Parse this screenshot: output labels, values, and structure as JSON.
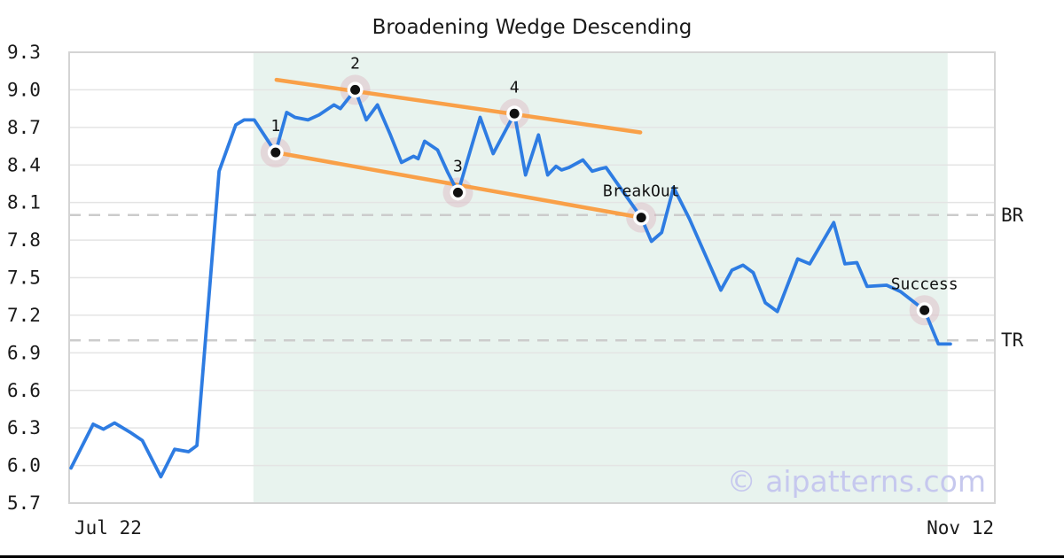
{
  "title": "Broadening Wedge Descending",
  "watermark": "© aipatterns.com",
  "colors": {
    "line": "#2e7ce2",
    "trend": "#f9a048",
    "shade": "#e8f3ee",
    "grid": "#e4e4e4",
    "border": "#d4d4d4",
    "dashed": "#cccccc",
    "halo": "#d9a7b4",
    "text": "#1a1a1a",
    "watermark": "#c6c8ee"
  },
  "chart_data": {
    "type": "line",
    "title": "Broadening Wedge Descending",
    "ylabel": "",
    "xlabel": "",
    "ylim": [
      5.7,
      9.3
    ],
    "yticks": [
      9.3,
      9.0,
      8.7,
      8.4,
      8.1,
      7.8,
      7.5,
      7.2,
      6.9,
      6.6,
      6.3,
      6.0,
      5.7
    ],
    "xtick_labels": [
      "Jul 22",
      "Nov 12"
    ],
    "grid": true,
    "levels": [
      {
        "label": "BR",
        "value": 8.0
      },
      {
        "label": "TR",
        "value": 7.0
      }
    ],
    "shaded_region": {
      "t_start": 19.9,
      "t_end": 94.9
    },
    "trendlines": [
      {
        "name": "upper",
        "t1": 22.4,
        "v1": 9.08,
        "t2": 61.7,
        "v2": 8.66
      },
      {
        "name": "lower",
        "t1": 22.3,
        "v1": 8.5,
        "t2": 61.8,
        "v2": 7.98
      }
    ],
    "annotations": [
      {
        "label": "1",
        "t": 22.3,
        "value": 8.5
      },
      {
        "label": "2",
        "t": 30.9,
        "value": 9.0
      },
      {
        "label": "3",
        "t": 42.0,
        "value": 8.18
      },
      {
        "label": "4",
        "t": 48.1,
        "value": 8.81
      },
      {
        "label": "BreakOut",
        "t": 61.8,
        "value": 7.98
      },
      {
        "label": "Success",
        "t": 92.4,
        "value": 7.24
      }
    ],
    "series": [
      {
        "name": "price",
        "x_unit": "percent_of_plot_width",
        "points": [
          [
            0.2,
            5.98
          ],
          [
            2.6,
            6.33
          ],
          [
            3.7,
            6.29
          ],
          [
            4.9,
            6.34
          ],
          [
            6.7,
            6.26
          ],
          [
            7.9,
            6.2
          ],
          [
            9.9,
            5.91
          ],
          [
            11.4,
            6.13
          ],
          [
            12.9,
            6.11
          ],
          [
            13.8,
            6.16
          ],
          [
            16.2,
            8.35
          ],
          [
            18.0,
            8.72
          ],
          [
            18.9,
            8.76
          ],
          [
            20.0,
            8.76
          ],
          [
            22.3,
            8.5
          ],
          [
            23.5,
            8.82
          ],
          [
            24.4,
            8.78
          ],
          [
            25.8,
            8.76
          ],
          [
            27.0,
            8.8
          ],
          [
            28.6,
            8.88
          ],
          [
            29.3,
            8.85
          ],
          [
            30.9,
            9.0
          ],
          [
            32.1,
            8.76
          ],
          [
            33.3,
            8.88
          ],
          [
            34.7,
            8.64
          ],
          [
            35.9,
            8.42
          ],
          [
            37.2,
            8.47
          ],
          [
            37.7,
            8.45
          ],
          [
            38.4,
            8.59
          ],
          [
            39.8,
            8.52
          ],
          [
            40.9,
            8.34
          ],
          [
            42.0,
            8.18
          ],
          [
            44.4,
            8.78
          ],
          [
            45.8,
            8.49
          ],
          [
            48.1,
            8.81
          ],
          [
            49.3,
            8.32
          ],
          [
            50.7,
            8.64
          ],
          [
            51.7,
            8.32
          ],
          [
            52.6,
            8.39
          ],
          [
            53.2,
            8.36
          ],
          [
            54.0,
            8.38
          ],
          [
            55.5,
            8.44
          ],
          [
            56.5,
            8.35
          ],
          [
            57.4,
            8.37
          ],
          [
            58.0,
            8.38
          ],
          [
            61.8,
            7.98
          ],
          [
            62.9,
            7.79
          ],
          [
            64.0,
            7.86
          ],
          [
            65.3,
            8.22
          ],
          [
            67.0,
            7.97
          ],
          [
            70.4,
            7.4
          ],
          [
            71.6,
            7.56
          ],
          [
            72.8,
            7.6
          ],
          [
            73.9,
            7.54
          ],
          [
            75.2,
            7.3
          ],
          [
            76.5,
            7.23
          ],
          [
            78.7,
            7.65
          ],
          [
            80.0,
            7.61
          ],
          [
            82.6,
            7.94
          ],
          [
            83.8,
            7.61
          ],
          [
            85.1,
            7.62
          ],
          [
            86.2,
            7.43
          ],
          [
            88.3,
            7.44
          ],
          [
            89.8,
            7.39
          ],
          [
            92.4,
            7.24
          ],
          [
            93.9,
            6.97
          ],
          [
            95.2,
            6.97
          ]
        ]
      }
    ],
    "legend": null
  }
}
